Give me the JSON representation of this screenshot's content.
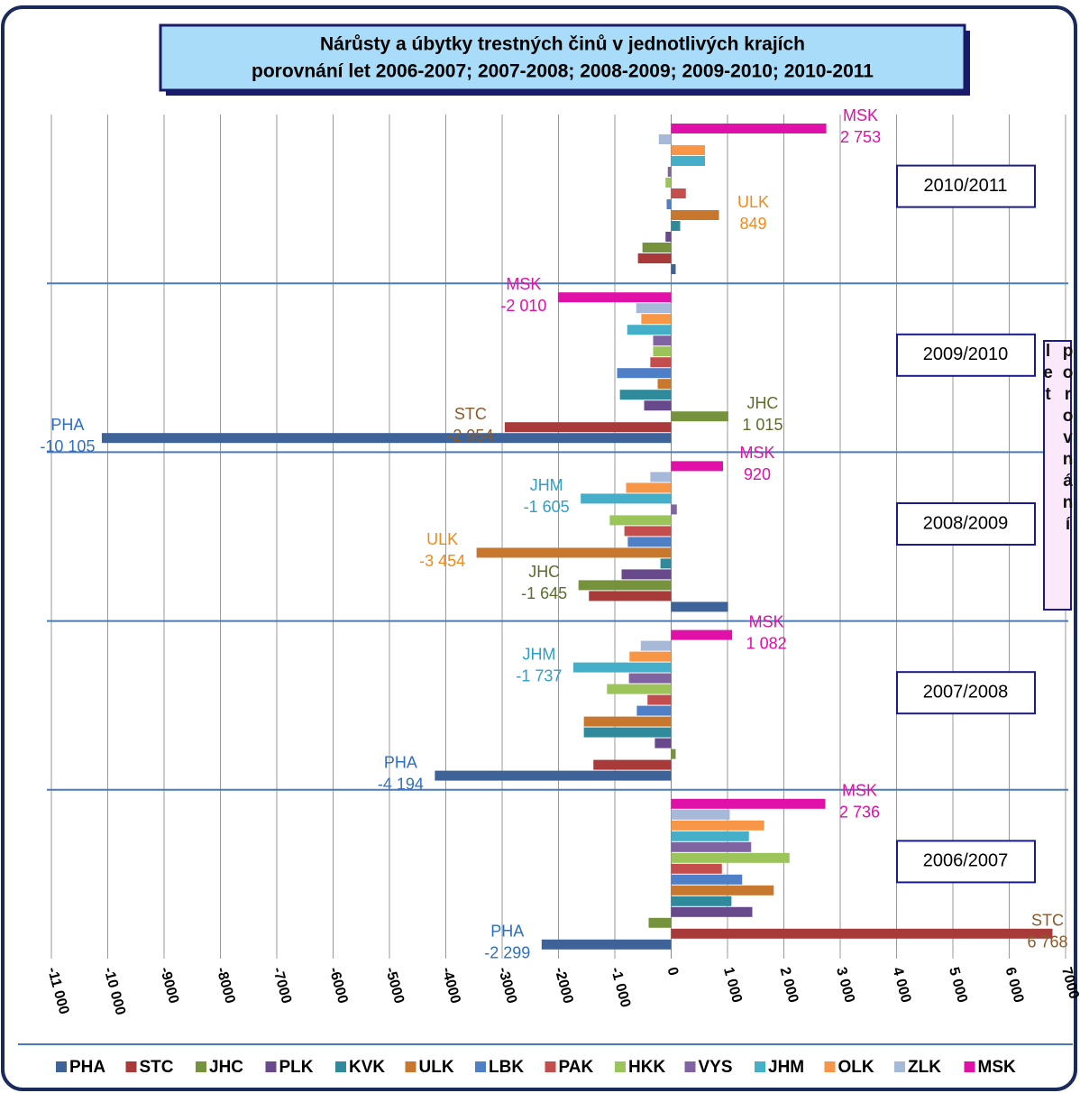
{
  "chart_data": {
    "type": "bar",
    "title": "Nárůsty a úbytky trestných činů v jednotlivých krajích",
    "subtitle": "porovnání let 2006-2007; 2007-2008; 2008-2009; 2009-2010; 2010-2011",
    "axis_title": "porovnání let",
    "orientation": "horizontal",
    "categories": [
      "2010/2011",
      "2009/2010",
      "2008/2009",
      "2007/2008",
      "2006/2007"
    ],
    "xlim": [
      -11000,
      7000
    ],
    "xticks": [
      {
        "value": -11000,
        "label": "-11 000"
      },
      {
        "value": -10000,
        "label": "-10 000"
      },
      -9000,
      -8000,
      -7000,
      -6000,
      -5000,
      -4000,
      -3000,
      -2000,
      {
        "value": -1000,
        "label": "-1 000"
      },
      0,
      {
        "value": 1000,
        "label": "1 000"
      },
      {
        "value": 2000,
        "label": "2 000"
      },
      {
        "value": 3000,
        "label": "3 000"
      },
      {
        "value": 4000,
        "label": "4 000"
      },
      {
        "value": 5000,
        "label": "5 000"
      },
      {
        "value": 6000,
        "label": "6 000"
      },
      7000
    ],
    "grid": true,
    "legend": "bottom",
    "series": [
      {
        "name": "PHA",
        "color": "#3d6399",
        "values": [
          80,
          -10105,
          1010,
          -4194,
          -2299
        ],
        "value_labels": [
          null,
          "-10 105",
          null,
          "-4 194",
          "-2 299"
        ],
        "label_color": "#2f6fc0"
      },
      {
        "name": "STC",
        "color": "#a83a3a",
        "values": [
          -590,
          -2954,
          -1460,
          -1380,
          6768
        ],
        "value_labels": [
          null,
          "-2 954",
          null,
          null,
          "6 768"
        ],
        "label_color": "#8b5a2b"
      },
      {
        "name": "JHC",
        "color": "#76923c",
        "values": [
          -510,
          1015,
          -1645,
          80,
          -400
        ],
        "value_labels": [
          null,
          "1 015",
          "-1 645",
          null,
          null
        ],
        "label_color": "#5a6e2a"
      },
      {
        "name": "PLK",
        "color": "#67498c",
        "values": [
          -100,
          -480,
          -880,
          -290,
          1440
        ]
      },
      {
        "name": "KVK",
        "color": "#2f8a9c",
        "values": [
          160,
          -910,
          -190,
          -1550,
          1070
        ]
      },
      {
        "name": "ULK",
        "color": "#c8772f",
        "values": [
          849,
          -240,
          -3454,
          -1550,
          1820
        ],
        "value_labels": [
          "849",
          null,
          "-3 454",
          null,
          null
        ],
        "label_color": "#f08a1c"
      },
      {
        "name": "LBK",
        "color": "#4f7fc7",
        "values": [
          -80,
          -960,
          -770,
          -610,
          1260
        ]
      },
      {
        "name": "PAK",
        "color": "#c44d4d",
        "values": [
          260,
          -370,
          -830,
          -420,
          900
        ]
      },
      {
        "name": "HKK",
        "color": "#9bc45a",
        "values": [
          -100,
          -320,
          -1090,
          -1140,
          2100
        ]
      },
      {
        "name": "VYS",
        "color": "#7f64a1",
        "values": [
          -60,
          -320,
          100,
          -750,
          1420
        ]
      },
      {
        "name": "JHM",
        "color": "#45aec8",
        "values": [
          600,
          -780,
          -1605,
          -1737,
          1380
        ],
        "value_labels": [
          null,
          null,
          "-1 605",
          "-1 737",
          null
        ],
        "label_color": "#2aa0c8"
      },
      {
        "name": "OLK",
        "color": "#f79646",
        "values": [
          600,
          -530,
          -800,
          -740,
          1650
        ]
      },
      {
        "name": "ZLK",
        "color": "#a6b9d8",
        "values": [
          -220,
          -620,
          -370,
          -540,
          1040
        ]
      },
      {
        "name": "MSK",
        "color": "#e010a8",
        "values": [
          2753,
          -2010,
          920,
          1082,
          2736
        ],
        "value_labels": [
          "2 753",
          "-2 010",
          "920",
          "1 082",
          "2 736"
        ],
        "label_color": "#e010a8"
      }
    ]
  }
}
